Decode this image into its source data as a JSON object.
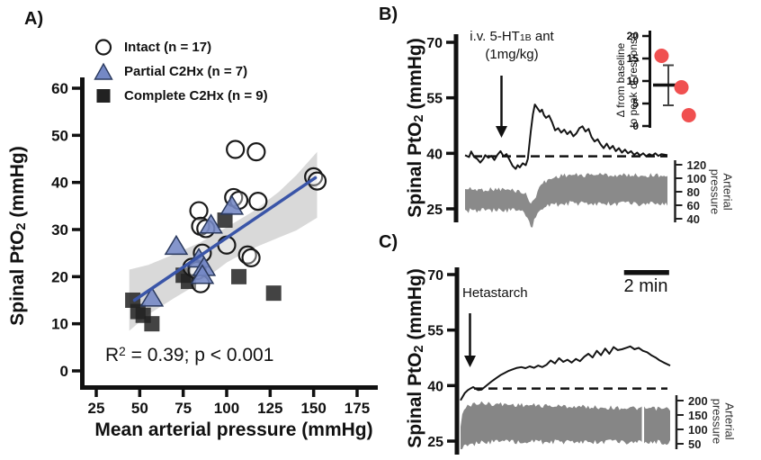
{
  "figure": {
    "panel_a_letter": "A)",
    "panel_b_letter": "B)",
    "panel_c_letter": "C)",
    "ylabel": {
      "pre": "Spinal PtO",
      "sub": "2",
      "post": " (mmHg)"
    },
    "xlabel_a": "Mean arterial pressure (mmHg)",
    "stats_a": {
      "pre": "R",
      "sup": "2",
      "post": " = 0.39; p < 0.001"
    },
    "b_annotation": {
      "line1_pre": "i.v. 5-HT",
      "line1_sub": "1B",
      "line1_post": " ant",
      "line2": "(1mg/kg)"
    },
    "c_annotation": "Hetastarch",
    "scalebar_label": "2 min",
    "right_axis_label": {
      "line1": "Arterial",
      "line2": "pressure"
    },
    "inset_label": {
      "line1": "Δ from baseline",
      "line2": "to peak of response"
    }
  },
  "chart_data": [
    {
      "id": "A",
      "type": "scatter",
      "xlabel": "Mean arterial pressure (mmHg)",
      "ylabel": "Spinal PtO2 (mmHg)",
      "xlim": [
        14,
        178
      ],
      "ylim": [
        -3,
        63
      ],
      "xticks": [
        25,
        50,
        75,
        100,
        125,
        150,
        175
      ],
      "yticks": [
        0,
        10,
        20,
        30,
        40,
        50,
        60
      ],
      "stats": "R2 = 0.39; p < 0.001",
      "series": [
        {
          "name": "Intact (n = 17)",
          "marker": "circle",
          "color": "#ffffff",
          "stroke": "#1a1a1a",
          "points": [
            [
              105,
              47
            ],
            [
              117,
              46.5
            ],
            [
              150,
              41.2
            ],
            [
              152,
              40.3
            ],
            [
              104,
              36.8
            ],
            [
              107,
              36.2
            ],
            [
              118,
              36
            ],
            [
              84,
              34
            ],
            [
              85,
              30.7
            ],
            [
              88,
              30.2
            ],
            [
              100,
              26.7
            ],
            [
              86,
              25
            ],
            [
              112,
              24.6
            ],
            [
              114,
              24
            ],
            [
              80,
              22
            ],
            [
              83,
              21.3
            ],
            [
              85,
              18.5
            ]
          ]
        },
        {
          "name": "Partial C2Hx (n = 7)",
          "marker": "triangle",
          "color": "#7488c5",
          "stroke": "#2b3a5e",
          "points": [
            [
              103,
              35
            ],
            [
              91,
              31
            ],
            [
              71,
              26.5
            ],
            [
              84,
              23.8
            ],
            [
              87,
              22
            ],
            [
              86,
              20.3
            ],
            [
              57,
              15.5
            ]
          ]
        },
        {
          "name": "Complete C2Hx (n = 9)",
          "marker": "square",
          "color": "#222222",
          "stroke": "#000000",
          "points": [
            [
              99,
              32
            ],
            [
              75,
              20.3
            ],
            [
              78,
              19
            ],
            [
              107,
              20
            ],
            [
              127,
              16.5
            ],
            [
              46,
              15
            ],
            [
              49,
              12.6
            ],
            [
              52,
              11.8
            ],
            [
              57,
              10
            ]
          ]
        }
      ],
      "regression": {
        "x1": 47,
        "y1": 15,
        "x2": 151,
        "y2": 41,
        "color": "#3a55a8"
      },
      "band": {
        "color": "#d9d9d9",
        "upper": [
          [
            44,
            21.5
          ],
          [
            55,
            22.5
          ],
          [
            70,
            24.8
          ],
          [
            85,
            27.3
          ],
          [
            100,
            30.5
          ],
          [
            115,
            33.8
          ],
          [
            130,
            38
          ],
          [
            140,
            41.5
          ],
          [
            152,
            46.5
          ]
        ],
        "lower": [
          [
            44,
            8.5
          ],
          [
            55,
            12
          ],
          [
            70,
            15.5
          ],
          [
            85,
            18.8
          ],
          [
            100,
            23
          ],
          [
            115,
            26
          ],
          [
            130,
            28.3
          ],
          [
            140,
            29.8
          ],
          [
            152,
            32.5
          ]
        ]
      }
    },
    {
      "id": "B",
      "type": "line",
      "ylabel": "Spinal PtO2 (mmHg)",
      "ylim": [
        22,
        73
      ],
      "yticks": [
        70,
        55,
        40,
        25
      ],
      "baseline_dashed": 39.2,
      "annotation": "i.v. 5-HT1B ant (1mg/kg)",
      "arrow_x": 0.18,
      "trace_color": "#141414",
      "trace": [
        [
          0,
          39.5
        ],
        [
          0.02,
          39
        ],
        [
          0.03,
          40.5
        ],
        [
          0.045,
          39
        ],
        [
          0.06,
          38.5
        ],
        [
          0.075,
          37.5
        ],
        [
          0.09,
          38.5
        ],
        [
          0.1,
          39.5
        ],
        [
          0.115,
          38.8
        ],
        [
          0.13,
          39.3
        ],
        [
          0.145,
          38.2
        ],
        [
          0.16,
          39.6
        ],
        [
          0.175,
          40.6
        ],
        [
          0.19,
          39.2
        ],
        [
          0.205,
          39.8
        ],
        [
          0.22,
          38.2
        ],
        [
          0.235,
          36.6
        ],
        [
          0.25,
          35.8
        ],
        [
          0.26,
          36.8
        ],
        [
          0.27,
          36.2
        ],
        [
          0.285,
          37.3
        ],
        [
          0.3,
          36.8
        ],
        [
          0.31,
          38.5
        ],
        [
          0.315,
          41
        ],
        [
          0.325,
          46
        ],
        [
          0.335,
          50.5
        ],
        [
          0.345,
          53.2
        ],
        [
          0.355,
          52.4
        ],
        [
          0.37,
          51.2
        ],
        [
          0.38,
          51.8
        ],
        [
          0.39,
          50.3
        ],
        [
          0.4,
          49.6
        ],
        [
          0.415,
          50.2
        ],
        [
          0.43,
          48.4
        ],
        [
          0.445,
          46.2
        ],
        [
          0.46,
          46.8
        ],
        [
          0.475,
          45.6
        ],
        [
          0.49,
          46.4
        ],
        [
          0.505,
          45.2
        ],
        [
          0.52,
          46
        ],
        [
          0.535,
          44.6
        ],
        [
          0.55,
          45.4
        ],
        [
          0.565,
          46.8
        ],
        [
          0.58,
          47.3
        ],
        [
          0.595,
          45.9
        ],
        [
          0.61,
          46.6
        ],
        [
          0.625,
          44.4
        ],
        [
          0.64,
          43.2
        ],
        [
          0.655,
          43.8
        ],
        [
          0.67,
          42.4
        ],
        [
          0.685,
          41.4
        ],
        [
          0.7,
          42.6
        ],
        [
          0.715,
          41.2
        ],
        [
          0.73,
          42
        ],
        [
          0.745,
          40.6
        ],
        [
          0.76,
          41.4
        ],
        [
          0.775,
          40.2
        ],
        [
          0.79,
          41
        ],
        [
          0.805,
          40
        ],
        [
          0.82,
          40.6
        ],
        [
          0.835,
          39.6
        ],
        [
          0.85,
          40.2
        ],
        [
          0.865,
          39.4
        ],
        [
          0.88,
          40
        ],
        [
          0.895,
          39.2
        ],
        [
          0.91,
          39.8
        ],
        [
          0.925,
          39.4
        ],
        [
          0.94,
          40
        ],
        [
          0.955,
          39.3
        ],
        [
          0.97,
          39.8
        ],
        [
          1,
          39.5
        ]
      ],
      "arterial": {
        "label": "Arterial pressure",
        "yticks": [
          120,
          100,
          80,
          60,
          40
        ],
        "color": "#8a8a8a",
        "envelope": [
          [
            0,
            84,
            52
          ],
          [
            0.08,
            83,
            53
          ],
          [
            0.16,
            84,
            52
          ],
          [
            0.24,
            82,
            52
          ],
          [
            0.28,
            80,
            50
          ],
          [
            0.3,
            76,
            44
          ],
          [
            0.315,
            68,
            34
          ],
          [
            0.33,
            62,
            28
          ],
          [
            0.345,
            70,
            40
          ],
          [
            0.36,
            85,
            52
          ],
          [
            0.39,
            94,
            57
          ],
          [
            0.43,
            100,
            60
          ],
          [
            0.47,
            104,
            62
          ],
          [
            0.52,
            105,
            63
          ],
          [
            0.58,
            104,
            63
          ],
          [
            0.64,
            106,
            62
          ],
          [
            0.7,
            105,
            63
          ],
          [
            0.76,
            104,
            62
          ],
          [
            0.82,
            105,
            63
          ],
          [
            0.88,
            104,
            62
          ],
          [
            0.94,
            105,
            63
          ],
          [
            1,
            104,
            62
          ]
        ]
      },
      "inset": {
        "ylabel": "Δ from baseline to peak of response",
        "ylim": [
          0,
          20
        ],
        "yticks": [
          20,
          15,
          10,
          5,
          0
        ],
        "point_color": "#f05050",
        "points": [
          [
            0.27,
            15.6
          ],
          [
            0.73,
            8.6
          ],
          [
            0.9,
            2.4
          ]
        ],
        "mean": 9.1,
        "error_low": 4.6,
        "error_high": 13.5
      }
    },
    {
      "id": "C",
      "type": "line",
      "ylabel": "Spinal PtO2 (mmHg)",
      "ylim": [
        22,
        73
      ],
      "yticks": [
        70,
        55,
        40,
        25
      ],
      "baseline_dashed": 39.2,
      "annotation": "Hetastarch",
      "arrow_x": 0.045,
      "scalebar": {
        "label": "2 min",
        "frac_start": 0.78,
        "frac_end": 0.995
      },
      "trace_color": "#141414",
      "trace": [
        [
          0,
          36
        ],
        [
          0.01,
          37
        ],
        [
          0.02,
          38
        ],
        [
          0.035,
          38.8
        ],
        [
          0.05,
          39.3
        ],
        [
          0.06,
          39.6
        ],
        [
          0.07,
          39.2
        ],
        [
          0.085,
          38.8
        ],
        [
          0.1,
          38.9
        ],
        [
          0.115,
          39.6
        ],
        [
          0.13,
          40.3
        ],
        [
          0.15,
          41.2
        ],
        [
          0.17,
          42
        ],
        [
          0.19,
          42.8
        ],
        [
          0.21,
          43.4
        ],
        [
          0.23,
          44
        ],
        [
          0.25,
          44.4
        ],
        [
          0.27,
          44.8
        ],
        [
          0.29,
          45
        ],
        [
          0.31,
          44.7
        ],
        [
          0.33,
          45.2
        ],
        [
          0.35,
          44.8
        ],
        [
          0.37,
          45.4
        ],
        [
          0.39,
          45
        ],
        [
          0.41,
          45.6
        ],
        [
          0.43,
          46.8
        ],
        [
          0.45,
          46
        ],
        [
          0.47,
          47.4
        ],
        [
          0.49,
          46.4
        ],
        [
          0.51,
          47
        ],
        [
          0.53,
          46.2
        ],
        [
          0.55,
          47.2
        ],
        [
          0.57,
          46.6
        ],
        [
          0.59,
          47.8
        ],
        [
          0.61,
          48.6
        ],
        [
          0.63,
          47.6
        ],
        [
          0.65,
          49.4
        ],
        [
          0.67,
          48.2
        ],
        [
          0.69,
          50
        ],
        [
          0.71,
          48.6
        ],
        [
          0.73,
          50.4
        ],
        [
          0.75,
          49.6
        ],
        [
          0.77,
          49.8
        ],
        [
          0.79,
          50.2
        ],
        [
          0.81,
          50.6
        ],
        [
          0.83,
          49.8
        ],
        [
          0.85,
          50.2
        ],
        [
          0.87,
          49.4
        ],
        [
          0.89,
          49
        ],
        [
          0.91,
          48.2
        ],
        [
          0.93,
          47.6
        ],
        [
          0.95,
          46.8
        ],
        [
          0.97,
          46.2
        ],
        [
          1,
          45.4
        ]
      ],
      "arterial": {
        "label": "Arterial pressure",
        "yticks": [
          200,
          150,
          100,
          50
        ],
        "color": "#868686",
        "gap_x": 0.865,
        "envelope": [
          [
            0,
            110,
            32
          ],
          [
            0.008,
            150,
            36
          ],
          [
            0.02,
            172,
            40
          ],
          [
            0.04,
            184,
            45
          ],
          [
            0.07,
            190,
            50
          ],
          [
            0.1,
            191,
            53
          ],
          [
            0.14,
            189,
            55
          ],
          [
            0.2,
            187,
            56
          ],
          [
            0.28,
            185,
            57
          ],
          [
            0.36,
            183,
            57
          ],
          [
            0.45,
            181,
            57
          ],
          [
            0.55,
            179,
            57
          ],
          [
            0.65,
            177,
            57
          ],
          [
            0.75,
            175,
            57
          ],
          [
            0.85,
            173,
            56
          ],
          [
            0.93,
            172,
            56
          ],
          [
            1,
            171,
            55
          ]
        ]
      }
    }
  ]
}
